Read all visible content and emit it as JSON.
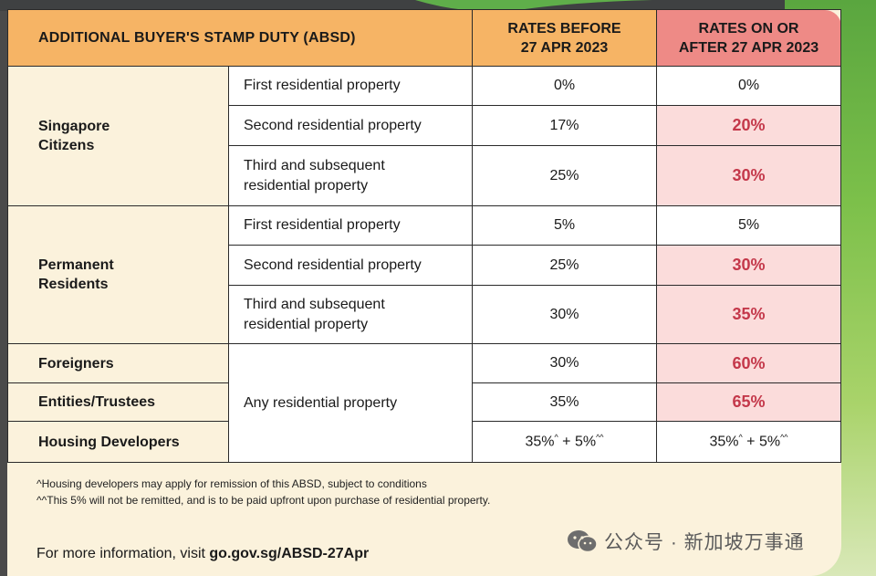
{
  "header": {
    "title": "ADDITIONAL BUYER'S STAMP DUTY (ABSD)",
    "before_line1": "RATES BEFORE",
    "before_line2": "27 APR 2023",
    "after_line1": "RATES ON OR",
    "after_line2": "AFTER 27 APR 2023"
  },
  "groups": {
    "citizens_line1": "Singapore",
    "citizens_line2": "Citizens",
    "pr_line1": "Permanent",
    "pr_line2": "Residents",
    "foreigners": "Foreigners",
    "entities": "Entities/Trustees",
    "developers": "Housing Developers"
  },
  "rows": [
    {
      "property": "First residential property",
      "before": "0%",
      "after": "0%",
      "increased": false
    },
    {
      "property": "Second residential property",
      "before": "17%",
      "after": "20%",
      "increased": true
    },
    {
      "property_line1": "Third and subsequent",
      "property_line2": "residential property",
      "before": "25%",
      "after": "30%",
      "increased": true
    },
    {
      "property": "First residential property",
      "before": "5%",
      "after": "5%",
      "increased": false
    },
    {
      "property": "Second residential property",
      "before": "25%",
      "after": "30%",
      "increased": true
    },
    {
      "property_line1": "Third and subsequent",
      "property_line2": "residential property",
      "before": "30%",
      "after": "35%",
      "increased": true
    },
    {
      "property": "Any residential property",
      "before": "30%",
      "after": "60%",
      "increased": true
    },
    {
      "before": "35%",
      "after": "65%",
      "increased": true
    },
    {
      "before_base": "35%",
      "before_mark1": "^",
      "before_rest": " + 5%",
      "before_mark2": "^^",
      "after_base": "35%",
      "after_mark1": "^",
      "after_rest": " + 5%",
      "after_mark2": "^^",
      "increased": false
    }
  ],
  "notes": {
    "note1": "^Housing developers may apply for remission of this ABSD, subject to conditions",
    "note2": "^^This 5% will not be remitted, and is to be paid upfront upon purchase of residential property."
  },
  "footer": {
    "prefix": "For more information, visit ",
    "link": "go.gov.sg/ABSD-27Apr"
  },
  "watermark": {
    "text": "公众号 · 新加坡万事通",
    "icon": "wechat-icon"
  },
  "colors": {
    "header_orange": "#f6b465",
    "header_pink": "#ee8a86",
    "increase_bg": "#fbdcdb",
    "increase_text": "#c4384a",
    "card_bg": "#fbf2dc"
  }
}
